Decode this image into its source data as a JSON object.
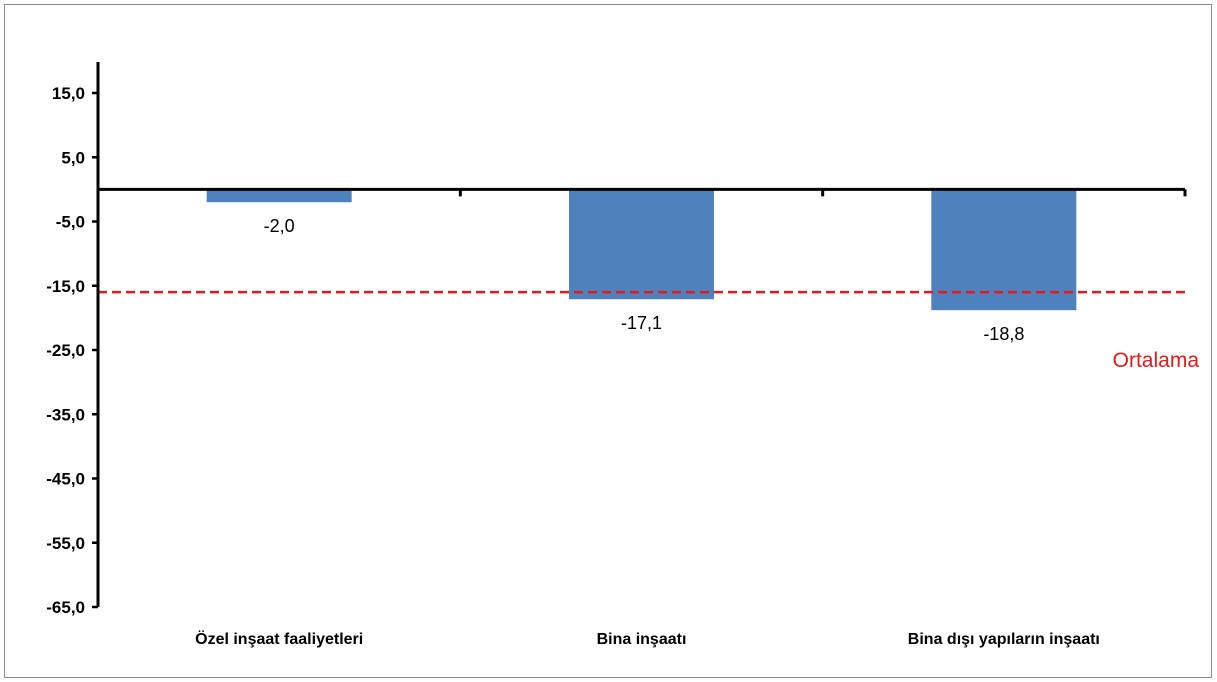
{
  "chart_data": {
    "type": "bar",
    "title": "",
    "xlabel": "",
    "ylabel": "",
    "categories": [
      "Özel inşaat faaliyetleri",
      "Bina inşaatı",
      "Bina dışı yapıların inşaatı"
    ],
    "values": [
      -2.0,
      -17.1,
      -18.8
    ],
    "value_labels": [
      "-2,0",
      "-17,1",
      "-18,8"
    ],
    "ylim": [
      -65,
      20
    ],
    "yticks": [
      15,
      5,
      -5,
      -15,
      -25,
      -35,
      -45,
      -55,
      -65
    ],
    "ytick_labels": [
      "15,0",
      "5,0",
      "-5,0",
      "-15,0",
      "-25,0",
      "-35,0",
      "-45,0",
      "-55,0",
      "-65,0"
    ],
    "average": {
      "value": -16.0,
      "label": "Ortalama",
      "color": "#e31a1c"
    },
    "bar_color": "#4f81bd",
    "grid": false,
    "legend": "none"
  }
}
